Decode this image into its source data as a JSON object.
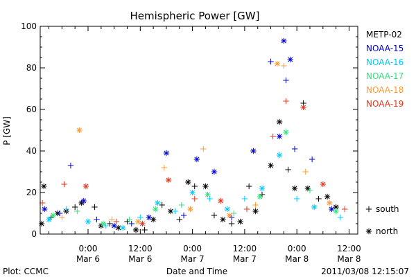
{
  "chart_data": {
    "type": "scatter",
    "title": "Hemispheric Power [GW]",
    "xlabel": "Date and Time",
    "ylabel": "P [GW]",
    "ylim": [
      0,
      100
    ],
    "xlim": [
      "2011-03-05 13:00",
      "2011-03-08 14:00"
    ],
    "y_ticks": [
      0,
      20,
      40,
      60,
      80,
      100
    ],
    "x_ticks": [
      {
        "time": "2011-03-06 00:00",
        "line1": "0:00",
        "line2": "Mar 6"
      },
      {
        "time": "2011-03-06 12:00",
        "line1": "12:00",
        "line2": "Mar 6"
      },
      {
        "time": "2011-03-07 00:00",
        "line1": "0:00",
        "line2": "Mar 7"
      },
      {
        "time": "2011-03-07 12:00",
        "line1": "12:00",
        "line2": "Mar 7"
      },
      {
        "time": "2011-03-08 00:00",
        "line1": "0:00",
        "line2": "Mar 8"
      },
      {
        "time": "2011-03-08 12:00",
        "line1": "12:00",
        "line2": "Mar 8"
      }
    ],
    "grid": false,
    "legend_position": "right",
    "hemisphere_symbols": [
      {
        "label": "south",
        "symbol": "+"
      },
      {
        "label": "north",
        "symbol": "*"
      }
    ],
    "series": [
      {
        "name": "METP-02",
        "color": "#000000",
        "points": [
          {
            "x": "2011-03-05 13:20",
            "y": 5,
            "h": "north"
          },
          {
            "x": "2011-03-05 13:50",
            "y": 23,
            "h": "north"
          },
          {
            "x": "2011-03-05 15:30",
            "y": 8,
            "h": "south"
          },
          {
            "x": "2011-03-05 17:00",
            "y": 10,
            "h": "north"
          },
          {
            "x": "2011-03-05 19:00",
            "y": 11,
            "h": "north"
          },
          {
            "x": "2011-03-05 21:00",
            "y": 13,
            "h": "south"
          },
          {
            "x": "2011-03-05 22:30",
            "y": 15,
            "h": "north"
          },
          {
            "x": "2011-03-06 01:30",
            "y": 13,
            "h": "south"
          },
          {
            "x": "2011-03-06 03:00",
            "y": 4,
            "h": "north"
          },
          {
            "x": "2011-03-06 05:00",
            "y": 5,
            "h": "south"
          },
          {
            "x": "2011-03-06 07:00",
            "y": 3,
            "h": "north"
          },
          {
            "x": "2011-03-06 09:00",
            "y": 6,
            "h": "south"
          },
          {
            "x": "2011-03-06 11:00",
            "y": 2,
            "h": "north"
          },
          {
            "x": "2011-03-06 13:00",
            "y": 2,
            "h": "south"
          },
          {
            "x": "2011-03-06 15:00",
            "y": 7,
            "h": "north"
          },
          {
            "x": "2011-03-06 17:00",
            "y": 14,
            "h": "south"
          },
          {
            "x": "2011-03-06 19:00",
            "y": 11,
            "h": "north"
          },
          {
            "x": "2011-03-06 21:00",
            "y": 7,
            "h": "south"
          },
          {
            "x": "2011-03-06 23:00",
            "y": 25,
            "h": "north"
          },
          {
            "x": "2011-03-07 00:30",
            "y": 23,
            "h": "south"
          },
          {
            "x": "2011-03-07 03:00",
            "y": 23,
            "h": "north"
          },
          {
            "x": "2011-03-07 05:00",
            "y": 9,
            "h": "south"
          },
          {
            "x": "2011-03-07 07:00",
            "y": 7,
            "h": "north"
          },
          {
            "x": "2011-03-07 09:00",
            "y": 5,
            "h": "south"
          },
          {
            "x": "2011-03-07 11:00",
            "y": 6,
            "h": "north"
          },
          {
            "x": "2011-03-07 13:00",
            "y": 23,
            "h": "south"
          },
          {
            "x": "2011-03-07 14:30",
            "y": 11,
            "h": "north"
          },
          {
            "x": "2011-03-07 16:00",
            "y": 19,
            "h": "south"
          },
          {
            "x": "2011-03-07 18:00",
            "y": 33,
            "h": "north"
          },
          {
            "x": "2011-03-07 20:00",
            "y": 54,
            "h": "north"
          },
          {
            "x": "2011-03-07 22:00",
            "y": 31,
            "h": "south"
          },
          {
            "x": "2011-03-07 23:30",
            "y": 22,
            "h": "north"
          },
          {
            "x": "2011-03-08 01:30",
            "y": 63,
            "h": "south"
          },
          {
            "x": "2011-03-08 02:30",
            "y": 22,
            "h": "north"
          },
          {
            "x": "2011-03-08 05:00",
            "y": 17,
            "h": "south"
          },
          {
            "x": "2011-03-08 07:00",
            "y": 18,
            "h": "north"
          },
          {
            "x": "2011-03-08 09:00",
            "y": 13,
            "h": "north"
          }
        ]
      },
      {
        "name": "NOAA-15",
        "color": "#0000cc",
        "points": [
          {
            "x": "2011-03-05 14:00",
            "y": 12,
            "h": "north"
          },
          {
            "x": "2011-03-05 17:30",
            "y": 10,
            "h": "south"
          },
          {
            "x": "2011-03-05 20:00",
            "y": 33,
            "h": "south"
          },
          {
            "x": "2011-03-05 23:00",
            "y": 16,
            "h": "north"
          },
          {
            "x": "2011-03-06 02:00",
            "y": 7,
            "h": "south"
          },
          {
            "x": "2011-03-06 06:00",
            "y": 4,
            "h": "north"
          },
          {
            "x": "2011-03-06 10:00",
            "y": 5,
            "h": "south"
          },
          {
            "x": "2011-03-06 14:00",
            "y": 8,
            "h": "north"
          },
          {
            "x": "2011-03-06 18:00",
            "y": 39,
            "h": "north"
          },
          {
            "x": "2011-03-06 22:00",
            "y": 9,
            "h": "south"
          },
          {
            "x": "2011-03-07 01:00",
            "y": 36,
            "h": "north"
          },
          {
            "x": "2011-03-07 05:00",
            "y": 30,
            "h": "north"
          },
          {
            "x": "2011-03-07 09:00",
            "y": 8,
            "h": "south"
          },
          {
            "x": "2011-03-07 14:00",
            "y": 40,
            "h": "north"
          },
          {
            "x": "2011-03-07 18:00",
            "y": 83,
            "h": "south"
          },
          {
            "x": "2011-03-07 20:00",
            "y": 47,
            "h": "north"
          },
          {
            "x": "2011-03-07 21:00",
            "y": 93,
            "h": "north"
          },
          {
            "x": "2011-03-07 21:30",
            "y": 74,
            "h": "south"
          },
          {
            "x": "2011-03-07 22:30",
            "y": 84,
            "h": "north"
          },
          {
            "x": "2011-03-07 23:30",
            "y": 41,
            "h": "south"
          },
          {
            "x": "2011-03-08 03:30",
            "y": 36,
            "h": "south"
          },
          {
            "x": "2011-03-08 08:00",
            "y": 12,
            "h": "north"
          }
        ]
      },
      {
        "name": "NOAA-16",
        "color": "#00c8ff",
        "points": [
          {
            "x": "2011-03-05 15:00",
            "y": 7,
            "h": "north"
          },
          {
            "x": "2011-03-05 19:00",
            "y": 12,
            "h": "south"
          },
          {
            "x": "2011-03-06 00:00",
            "y": 6,
            "h": "north"
          },
          {
            "x": "2011-03-06 04:00",
            "y": 4,
            "h": "south"
          },
          {
            "x": "2011-03-06 08:00",
            "y": 3,
            "h": "north"
          },
          {
            "x": "2011-03-06 12:00",
            "y": 8,
            "h": "south"
          },
          {
            "x": "2011-03-06 16:00",
            "y": 15,
            "h": "north"
          },
          {
            "x": "2011-03-06 20:00",
            "y": 11,
            "h": "south"
          },
          {
            "x": "2011-03-07 00:00",
            "y": 20,
            "h": "north"
          },
          {
            "x": "2011-03-07 04:00",
            "y": 17,
            "h": "south"
          },
          {
            "x": "2011-03-07 08:00",
            "y": 12,
            "h": "north"
          },
          {
            "x": "2011-03-07 12:00",
            "y": 17,
            "h": "south"
          },
          {
            "x": "2011-03-07 16:00",
            "y": 22,
            "h": "north"
          },
          {
            "x": "2011-03-07 20:00",
            "y": 38,
            "h": "north"
          },
          {
            "x": "2011-03-08 00:00",
            "y": 17,
            "h": "south"
          },
          {
            "x": "2011-03-08 04:00",
            "y": 13,
            "h": "north"
          },
          {
            "x": "2011-03-08 10:00",
            "y": 8,
            "h": "south"
          }
        ]
      },
      {
        "name": "NOAA-17",
        "color": "#33e07a",
        "points": [
          {
            "x": "2011-03-05 16:00",
            "y": 9,
            "h": "north"
          },
          {
            "x": "2011-03-05 21:30",
            "y": 11,
            "h": "south"
          },
          {
            "x": "2011-03-06 03:30",
            "y": 5,
            "h": "north"
          },
          {
            "x": "2011-03-06 09:30",
            "y": 7,
            "h": "south"
          },
          {
            "x": "2011-03-06 15:30",
            "y": 12,
            "h": "north"
          },
          {
            "x": "2011-03-06 21:30",
            "y": 14,
            "h": "south"
          },
          {
            "x": "2011-03-07 03:30",
            "y": 19,
            "h": "north"
          },
          {
            "x": "2011-03-07 09:30",
            "y": 10,
            "h": "south"
          },
          {
            "x": "2011-03-07 15:30",
            "y": 18,
            "h": "north"
          },
          {
            "x": "2011-03-07 21:30",
            "y": 49,
            "h": "north"
          },
          {
            "x": "2011-03-08 03:00",
            "y": 21,
            "h": "south"
          },
          {
            "x": "2011-03-08 09:00",
            "y": 11,
            "h": "north"
          }
        ]
      },
      {
        "name": "NOAA-18",
        "color": "#ff9933",
        "points": [
          {
            "x": "2011-03-05 18:00",
            "y": 8,
            "h": "south"
          },
          {
            "x": "2011-03-05 22:00",
            "y": 50,
            "h": "north"
          },
          {
            "x": "2011-03-06 05:30",
            "y": 7,
            "h": "south"
          },
          {
            "x": "2011-03-06 11:30",
            "y": 6,
            "h": "north"
          },
          {
            "x": "2011-03-06 17:30",
            "y": 32,
            "h": "south"
          },
          {
            "x": "2011-03-06 23:30",
            "y": 12,
            "h": "north"
          },
          {
            "x": "2011-03-07 02:30",
            "y": 41,
            "h": "south"
          },
          {
            "x": "2011-03-07 08:30",
            "y": 9,
            "h": "north"
          },
          {
            "x": "2011-03-07 14:30",
            "y": 14,
            "h": "south"
          },
          {
            "x": "2011-03-07 19:30",
            "y": 82,
            "h": "north"
          },
          {
            "x": "2011-03-07 21:00",
            "y": 81,
            "h": "south"
          },
          {
            "x": "2011-03-08 02:00",
            "y": 30,
            "h": "south"
          },
          {
            "x": "2011-03-08 07:30",
            "y": 15,
            "h": "north"
          }
        ]
      },
      {
        "name": "NOAA-19",
        "color": "#e63319",
        "points": [
          {
            "x": "2011-03-05 13:30",
            "y": 15,
            "h": "south"
          },
          {
            "x": "2011-03-05 18:30",
            "y": 24,
            "h": "south"
          },
          {
            "x": "2011-03-05 23:30",
            "y": 23,
            "h": "north"
          },
          {
            "x": "2011-03-06 06:30",
            "y": 6,
            "h": "south"
          },
          {
            "x": "2011-03-06 12:30",
            "y": 5,
            "h": "north"
          },
          {
            "x": "2011-03-06 18:30",
            "y": 26,
            "h": "north"
          },
          {
            "x": "2011-03-07 00:30",
            "y": 17,
            "h": "south"
          },
          {
            "x": "2011-03-07 06:30",
            "y": 16,
            "h": "north"
          },
          {
            "x": "2011-03-07 12:30",
            "y": 12,
            "h": "south"
          },
          {
            "x": "2011-03-07 18:30",
            "y": 47,
            "h": "south"
          },
          {
            "x": "2011-03-07 21:30",
            "y": 64,
            "h": "south"
          },
          {
            "x": "2011-03-08 01:30",
            "y": 61,
            "h": "north"
          },
          {
            "x": "2011-03-08 06:00",
            "y": 24,
            "h": "north"
          },
          {
            "x": "2011-03-08 11:00",
            "y": 12,
            "h": "south"
          }
        ]
      }
    ]
  },
  "footer": {
    "left": "Plot: CCMC",
    "right": "2011/03/08 12:15:07"
  }
}
